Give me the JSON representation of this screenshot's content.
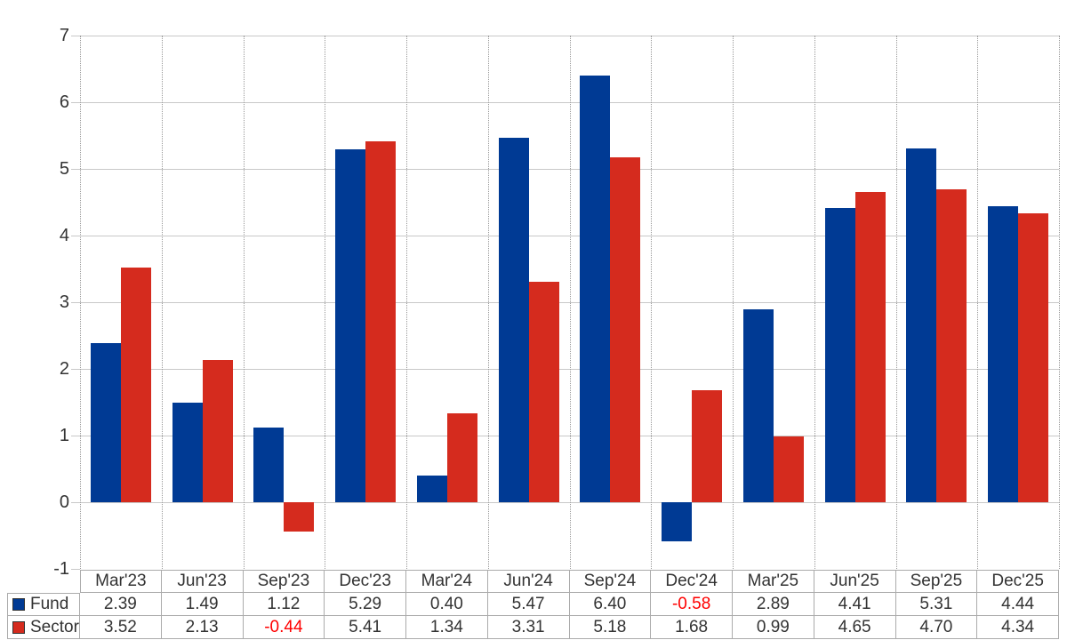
{
  "page": {
    "background": "#ffffff"
  },
  "chart_data": {
    "type": "bar",
    "title": "",
    "xlabel": "",
    "ylabel": "",
    "categories": [
      "Mar'23",
      "Jun'23",
      "Sep'23",
      "Dec'23",
      "Mar'24",
      "Jun'24",
      "Sep'24",
      "Dec'24",
      "Mar'25",
      "Jun'25",
      "Sep'25",
      "Dec'25"
    ],
    "series": [
      {
        "name": "Fund",
        "color": "#003A94",
        "values": [
          2.39,
          1.49,
          1.12,
          5.29,
          0.4,
          5.47,
          6.4,
          -0.58,
          2.89,
          4.41,
          5.31,
          4.44
        ]
      },
      {
        "name": "Sector",
        "color": "#D52B1E",
        "values": [
          3.52,
          2.13,
          -0.44,
          5.41,
          1.34,
          3.31,
          5.18,
          1.68,
          0.99,
          4.65,
          4.7,
          4.34
        ]
      }
    ],
    "ylim": [
      -1,
      7
    ],
    "yticks": [
      7,
      6,
      5,
      4,
      3,
      2,
      1,
      0,
      -1
    ],
    "grid": true,
    "legend_position": "table-rows-left",
    "value_decimals": 2,
    "text_color": "#333333",
    "negative_value_color": "#FF0000",
    "gridline_color": "#c8c8c8",
    "table_border_color": "#ababab"
  }
}
